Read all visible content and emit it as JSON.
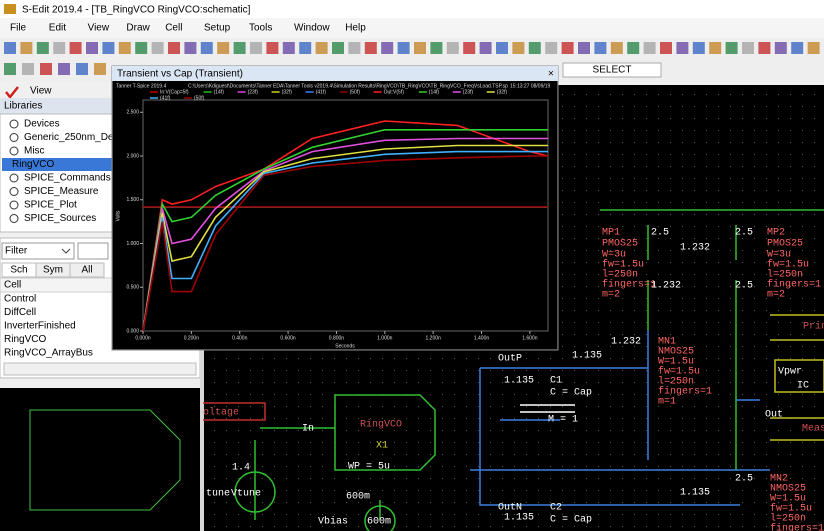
{
  "window": {
    "title": "S-Edit 2019.4 - [TB_RingVCO RingVCO:schematic]"
  },
  "menu": [
    "File",
    "Edit",
    "View",
    "Draw",
    "Cell",
    "Setup",
    "Tools",
    "Window",
    "Help"
  ],
  "toolbar": {
    "mode": "SELECT",
    "view": "View"
  },
  "libraries": {
    "title": "Libraries",
    "items": [
      "Devices",
      "Generic_250nm_Devic",
      "Misc",
      "RingVCO",
      "SPICE_Commands",
      "SPICE_Measure",
      "SPICE_Plot",
      "SPICE_Sources"
    ],
    "filter": "Filter",
    "tabs": [
      "Sch",
      "Sym",
      "All"
    ],
    "cell_header": "Cell",
    "cells": [
      "Control",
      "DiffCell",
      "InverterFinished",
      "RingVCO",
      "RingVCO_ArrayBus"
    ]
  },
  "plot_window": {
    "title": "Transient vs Cap (Transient)",
    "close": "×"
  },
  "chart_data": {
    "type": "line",
    "simulator": "Tanner T-Spice 2019.4",
    "file": "C:\\Users\\Kdiguest\\Documents\\Tanner EDA\\Tanner Tools v2019.4\\Simulation Results\\RingVCO\\TB_RingVCO\\TB_RingVCO_FreqVsLoad.TSP.sp",
    "timestamp": "15:13:27 08/09/19",
    "ylabel": "Volts",
    "xlabel": "Seconds",
    "x": [
      0,
      0.08,
      0.12,
      0.2,
      0.3,
      0.5,
      0.7,
      1.0,
      1.3,
      1.6,
      1.675
    ],
    "xlim": [
      0,
      1.675
    ],
    "ylim": [
      0,
      2.64
    ],
    "xticks": [
      {
        "value": 0,
        "label": "0.000n"
      },
      {
        "value": 0.2,
        "label": "0.200n"
      },
      {
        "value": 0.4,
        "label": "0.400n"
      },
      {
        "value": 0.6,
        "label": "0.600n"
      },
      {
        "value": 0.8,
        "label": "0.800n"
      },
      {
        "value": 1.0,
        "label": "1.000n"
      },
      {
        "value": 1.2,
        "label": "1.200n"
      },
      {
        "value": 1.4,
        "label": "1.400n"
      },
      {
        "value": 1.6,
        "label": "1.600n"
      }
    ],
    "yticks": [
      {
        "value": 0,
        "label": "0.000"
      },
      {
        "value": 0.5,
        "label": "0.500"
      },
      {
        "value": 1.0,
        "label": "1.000"
      },
      {
        "value": 1.5,
        "label": "1.500"
      },
      {
        "value": 2.0,
        "label": "2.000"
      },
      {
        "value": 2.5,
        "label": "2.500"
      }
    ],
    "series": [
      {
        "name": "In:V(Cap=5f)",
        "color": "#c00000",
        "values": [
          1.42,
          1.42,
          1.42,
          1.42,
          1.42,
          1.42,
          1.42,
          1.42,
          1.42,
          1.42,
          1.42
        ]
      },
      {
        "name": "(14f)",
        "color": "#20c020",
        "values": [
          1.42,
          1.42,
          1.42,
          1.42,
          1.42,
          1.42,
          1.42,
          1.42,
          1.42,
          1.42,
          1.42
        ]
      },
      {
        "name": "(23f)",
        "color": "#e040e0",
        "values": [
          1.42,
          1.42,
          1.42,
          1.42,
          1.42,
          1.42,
          1.42,
          1.42,
          1.42,
          1.42,
          1.42
        ]
      },
      {
        "name": "(32f)",
        "color": "#d0d020",
        "values": [
          1.42,
          1.42,
          1.42,
          1.42,
          1.42,
          1.42,
          1.42,
          1.42,
          1.42,
          1.42,
          1.42
        ]
      },
      {
        "name": "(41f)",
        "color": "#4080ff",
        "values": [
          1.42,
          1.42,
          1.42,
          1.42,
          1.42,
          1.42,
          1.42,
          1.42,
          1.42,
          1.42,
          1.42
        ]
      },
      {
        "name": "(50f)",
        "color": "#900000",
        "values": [
          1.42,
          1.42,
          1.42,
          1.42,
          1.42,
          1.42,
          1.42,
          1.42,
          1.42,
          1.42,
          1.42
        ]
      },
      {
        "name": "Out:V(5f)",
        "color": "#ff2020",
        "values": [
          0,
          1.5,
          1.45,
          1.5,
          1.65,
          1.85,
          2.2,
          2.4,
          2.35,
          2.05,
          2.0
        ]
      },
      {
        "name": "(14f)",
        "color": "#30d030",
        "values": [
          0,
          1.45,
          1.25,
          1.3,
          1.55,
          1.85,
          2.1,
          2.3,
          2.3,
          2.3,
          2.3
        ]
      },
      {
        "name": "(23f)",
        "color": "#e050e0",
        "values": [
          0,
          1.4,
          1.0,
          1.05,
          1.4,
          1.83,
          2.05,
          2.18,
          2.2,
          2.2,
          2.2
        ]
      },
      {
        "name": "(32f)",
        "color": "#e0e040",
        "values": [
          0,
          1.35,
          0.8,
          0.85,
          1.3,
          1.82,
          1.97,
          2.08,
          2.12,
          2.12,
          2.12
        ]
      },
      {
        "name": "(41f)",
        "color": "#40b0ff",
        "values": [
          0,
          1.3,
          0.6,
          0.6,
          1.2,
          1.8,
          1.92,
          2.02,
          2.05,
          2.05,
          2.05
        ]
      },
      {
        "name": "(50f)",
        "color": "#a00000",
        "values": [
          0,
          1.25,
          0.45,
          0.45,
          1.1,
          1.78,
          1.88,
          1.95,
          1.98,
          2.0,
          2.0
        ]
      }
    ]
  },
  "schematic": {
    "labels": [
      "MP1",
      "PMOS25",
      "W=3u",
      "fw=1.5u",
      "l=250n",
      "fingers=1",
      "m=2",
      "2.5",
      "1.232",
      "1.232",
      "2.5",
      "MP2",
      "PMOS25",
      "W=3u",
      "fw=1.5u",
      "l=250n",
      "fingers=1",
      "m=2",
      "2.5",
      "1.232",
      "MN1",
      "NMOS25",
      "W=1.5u",
      "fw=1.5u",
      "l=250n",
      "fingers=1",
      "m=1",
      "1.135",
      "OutP",
      "1.135",
      "C1",
      "C = Cap",
      "M = 1",
      "RingVCO",
      "X1",
      "WP = 5u",
      "In",
      "oltage",
      "1.4",
      "tune",
      "Vtune",
      "600m",
      "Vbias",
      "600m",
      "OutN",
      "1.135",
      "C2",
      "C = Cap",
      "1.135",
      "2.5",
      "MN2",
      "NMOS25",
      "W=1.5u",
      "fw=1.5u",
      "l=250n",
      "fingers=1",
      "Out",
      "IC",
      "Vpwr",
      "Prin",
      "Meas"
    ]
  }
}
